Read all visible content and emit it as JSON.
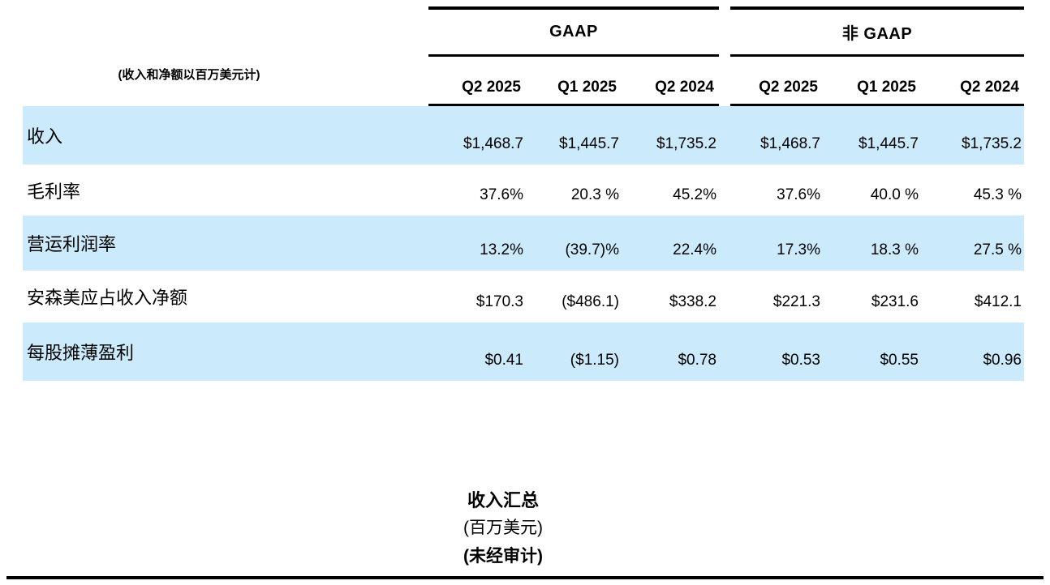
{
  "table": {
    "unit_note": "(收入和净额以百万美元计)",
    "groups": [
      {
        "label": "GAAP"
      },
      {
        "label": "非 GAAP"
      }
    ],
    "columns": [
      "Q2 2025",
      "Q1 2025",
      "Q2 2024",
      "Q2 2025",
      "Q1 2025",
      "Q2 2024"
    ],
    "rows": [
      {
        "label": "收入",
        "values": [
          "$1,468.7",
          "$1,445.7",
          "$1,735.2",
          "$1,468.7",
          "$1,445.7",
          "$1,735.2"
        ]
      },
      {
        "label": "毛利率",
        "values": [
          "37.6%",
          "20.3 %",
          "45.2%",
          "37.6%",
          "40.0 %",
          "45.3 %"
        ]
      },
      {
        "label": "营运利润率",
        "values": [
          "13.2%",
          "(39.7)%",
          "22.4%",
          "17.3%",
          "18.3 %",
          "27.5 %"
        ]
      },
      {
        "label": "安森美应占收入净额",
        "values": [
          "$170.3",
          "($486.1)",
          "$338.2",
          "$221.3",
          "$231.6",
          "$412.1"
        ]
      },
      {
        "label": "每股摊薄盈利",
        "values": [
          "$0.41",
          "($1.15)",
          "$0.78",
          "$0.53",
          "$0.55",
          "$0.96"
        ]
      }
    ]
  },
  "footer": {
    "title": "收入汇总",
    "unit": "(百万美元)",
    "unaudited": "(未经审计)"
  },
  "colors": {
    "row_highlight": "#CBEAFB",
    "rule": "#000000"
  }
}
